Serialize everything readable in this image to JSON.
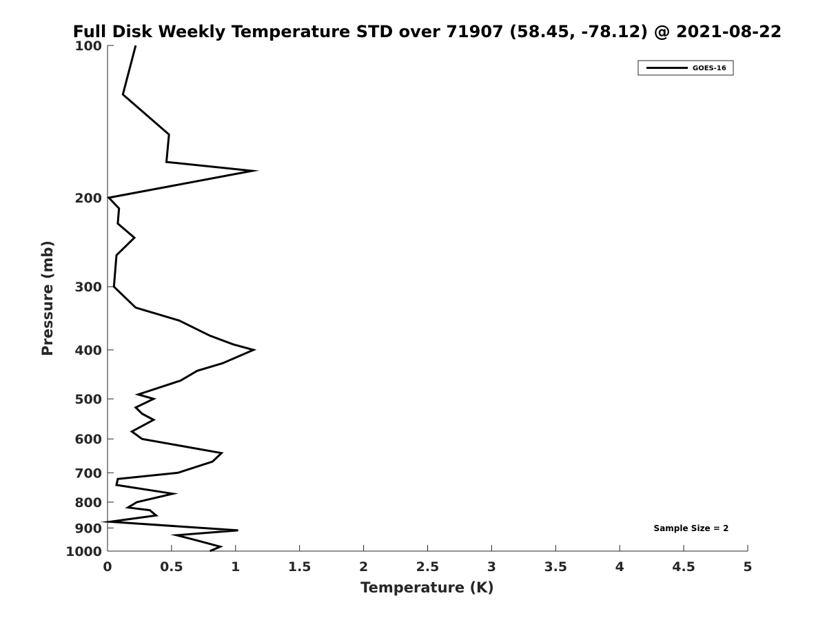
{
  "chart_data": {
    "type": "line",
    "title": "Full Disk Weekly Temperature STD over 71907 (58.45, -78.12) @ 2021-08-22",
    "xlabel": "Temperature (K)",
    "ylabel": "Pressure (mb)",
    "xlim": [
      0,
      5
    ],
    "ylim": [
      100,
      1000
    ],
    "y_scale": "log",
    "y_reversed": true,
    "x_ticks": [
      "0",
      "0.5",
      "1",
      "1.5",
      "2",
      "2.5",
      "3",
      "3.5",
      "4",
      "4.5",
      "5"
    ],
    "y_ticks": [
      "100",
      "200",
      "300",
      "400",
      "500",
      "600",
      "700",
      "800",
      "900",
      "1000"
    ],
    "grid": false,
    "legend_position": "top-right",
    "annotation": "Sample Size = 2",
    "series": [
      {
        "name": "GOES-16",
        "color": "#000000",
        "x": [
          0.22,
          0.12,
          0.48,
          0.46,
          1.13,
          0.01,
          0.09,
          0.08,
          0.21,
          0.07,
          0.05,
          0.22,
          0.56,
          0.8,
          0.98,
          1.14,
          0.9,
          0.7,
          0.57,
          0.24,
          0.36,
          0.22,
          0.27,
          0.36,
          0.19,
          0.27,
          0.89,
          0.82,
          0.55,
          0.08,
          0.07,
          0.51,
          0.23,
          0.16,
          0.33,
          0.38,
          0.02,
          1.02,
          0.54,
          0.68,
          0.88,
          0.8
        ],
        "y": [
          100,
          125,
          150,
          170,
          177,
          200,
          210,
          225,
          240,
          260,
          300,
          330,
          350,
          375,
          390,
          400,
          425,
          440,
          460,
          490,
          500,
          520,
          535,
          550,
          580,
          600,
          640,
          665,
          700,
          720,
          740,
          770,
          800,
          820,
          830,
          850,
          875,
          910,
          930,
          950,
          980,
          1000
        ]
      }
    ]
  }
}
